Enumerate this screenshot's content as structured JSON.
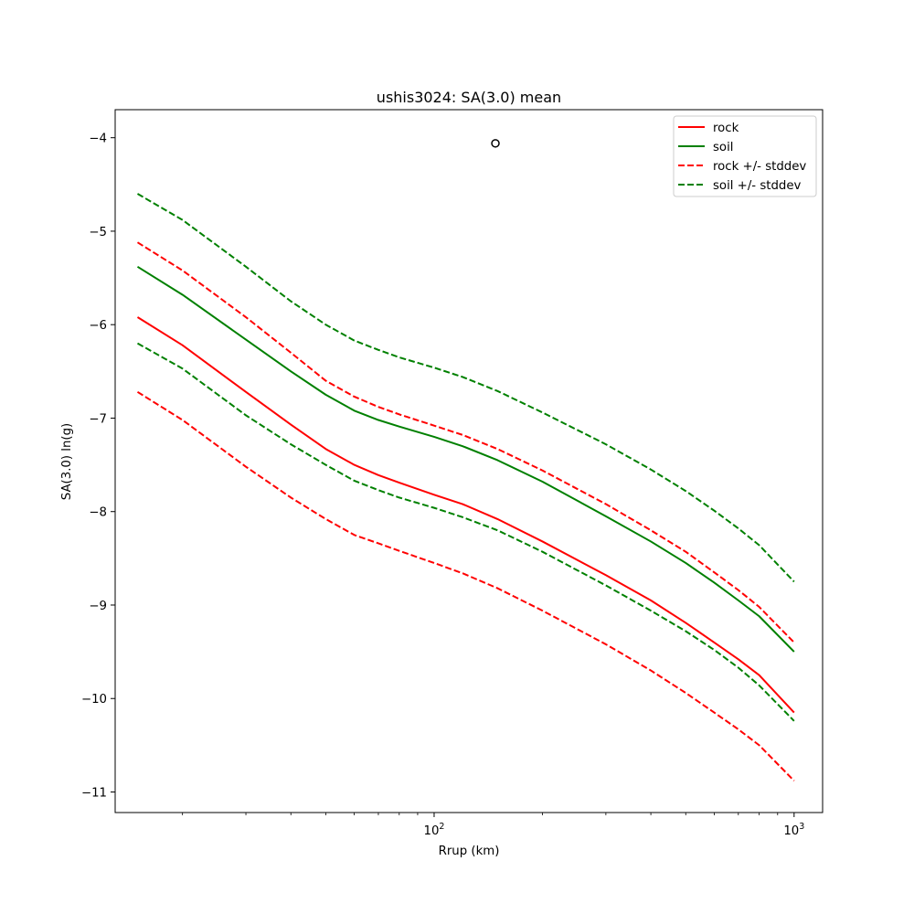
{
  "chart_data": {
    "type": "line",
    "title": "ushis3024: SA(3.0) mean",
    "xlabel": "Rrup (km)",
    "ylabel": "SA(3.0) ln(g)",
    "xscale": "log",
    "xlim": [
      13,
      1200
    ],
    "ylim": [
      -11.22,
      -3.7
    ],
    "y_ticks": [
      -11,
      -10,
      -9,
      -8,
      -7,
      -6,
      -5,
      -4
    ],
    "y_tick_labels": [
      "−11",
      "−10",
      "−9",
      "−8",
      "−7",
      "−6",
      "−5",
      "−4"
    ],
    "x_major_ticks": [
      {
        "value": 100,
        "base": "10",
        "exp": "2"
      },
      {
        "value": 1000,
        "base": "10",
        "exp": "3"
      }
    ],
    "x_minor_ticks": [
      20,
      30,
      40,
      50,
      60,
      70,
      80,
      90,
      200,
      300,
      400,
      500,
      600,
      700,
      800,
      900
    ],
    "grid": false,
    "legend_position": "top-right",
    "series": [
      {
        "name": "rock",
        "color": "#ff0000",
        "style": "solid",
        "x": [
          15,
          20,
          30,
          40,
          50,
          60,
          70,
          80,
          100,
          120,
          150,
          200,
          300,
          400,
          500,
          600,
          700,
          800,
          1000
        ],
        "y": [
          -5.92,
          -6.22,
          -6.72,
          -7.07,
          -7.33,
          -7.5,
          -7.61,
          -7.69,
          -7.82,
          -7.92,
          -8.08,
          -8.32,
          -8.68,
          -8.95,
          -9.19,
          -9.4,
          -9.58,
          -9.75,
          -10.15
        ]
      },
      {
        "name": "soil",
        "color": "#008000",
        "style": "solid",
        "x": [
          15,
          20,
          30,
          40,
          50,
          60,
          70,
          80,
          100,
          120,
          150,
          200,
          300,
          400,
          500,
          600,
          700,
          800,
          1000
        ],
        "y": [
          -5.38,
          -5.68,
          -6.16,
          -6.5,
          -6.75,
          -6.92,
          -7.02,
          -7.09,
          -7.2,
          -7.3,
          -7.45,
          -7.68,
          -8.05,
          -8.32,
          -8.55,
          -8.76,
          -8.95,
          -9.12,
          -9.5
        ]
      },
      {
        "name": "rock +/- stddev",
        "color": "#ff0000",
        "style": "dashed",
        "x": [
          15,
          20,
          30,
          40,
          50,
          60,
          70,
          80,
          100,
          120,
          150,
          200,
          300,
          400,
          500,
          600,
          700,
          800,
          1000
        ],
        "y": [
          -5.12,
          -5.42,
          -5.92,
          -6.3,
          -6.6,
          -6.77,
          -6.88,
          -6.96,
          -7.08,
          -7.18,
          -7.33,
          -7.56,
          -7.92,
          -8.2,
          -8.43,
          -8.65,
          -8.84,
          -9.02,
          -9.4
        ]
      },
      {
        "name": "",
        "color": "#ff0000",
        "style": "dashed",
        "x": [
          15,
          20,
          30,
          40,
          50,
          60,
          70,
          80,
          100,
          120,
          150,
          200,
          300,
          400,
          500,
          600,
          700,
          800,
          1000
        ],
        "y": [
          -6.72,
          -7.02,
          -7.52,
          -7.85,
          -8.08,
          -8.25,
          -8.34,
          -8.42,
          -8.55,
          -8.66,
          -8.82,
          -9.06,
          -9.42,
          -9.7,
          -9.94,
          -10.15,
          -10.33,
          -10.5,
          -10.88
        ]
      },
      {
        "name": "soil +/- stddev",
        "color": "#008000",
        "style": "dashed",
        "x": [
          15,
          20,
          30,
          40,
          50,
          60,
          70,
          80,
          100,
          120,
          150,
          200,
          300,
          400,
          500,
          600,
          700,
          800,
          1000
        ],
        "y": [
          -4.6,
          -4.88,
          -5.38,
          -5.75,
          -6.0,
          -6.17,
          -6.27,
          -6.35,
          -6.46,
          -6.56,
          -6.71,
          -6.94,
          -7.28,
          -7.55,
          -7.78,
          -7.99,
          -8.18,
          -8.36,
          -8.75
        ]
      },
      {
        "name": "",
        "color": "#008000",
        "style": "dashed",
        "x": [
          15,
          20,
          30,
          40,
          50,
          60,
          70,
          80,
          100,
          120,
          150,
          200,
          300,
          400,
          500,
          600,
          700,
          800,
          1000
        ],
        "y": [
          -6.2,
          -6.47,
          -6.97,
          -7.28,
          -7.5,
          -7.67,
          -7.77,
          -7.85,
          -7.96,
          -8.06,
          -8.2,
          -8.43,
          -8.79,
          -9.06,
          -9.28,
          -9.48,
          -9.67,
          -9.86,
          -10.24
        ]
      }
    ],
    "marker": {
      "x": 148,
      "y": -4.06,
      "shape": "open-circle",
      "color": "#000000"
    },
    "legend": [
      {
        "label": "rock",
        "color": "#ff0000",
        "style": "solid"
      },
      {
        "label": "soil",
        "color": "#008000",
        "style": "solid"
      },
      {
        "label": "rock +/- stddev",
        "color": "#ff0000",
        "style": "dashed"
      },
      {
        "label": "soil +/- stddev",
        "color": "#008000",
        "style": "dashed"
      }
    ]
  }
}
